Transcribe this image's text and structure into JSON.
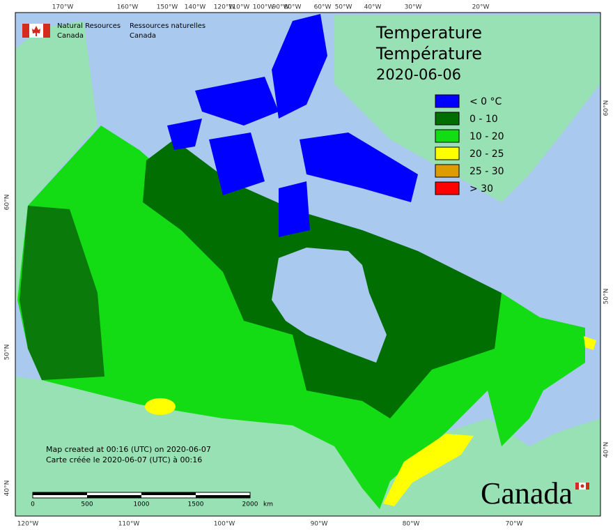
{
  "header": {
    "org_en": [
      "Natural Resources",
      "Canada"
    ],
    "org_fr": [
      "Ressources naturelles",
      "Canada"
    ]
  },
  "title": [
    "Temperature",
    "Température",
    "2020-06-06"
  ],
  "legend": [
    {
      "label": "< 0 °C",
      "color": "#0000ff"
    },
    {
      "label": "0 - 10",
      "color": "#006e00"
    },
    {
      "label": "10 - 20",
      "color": "#14dc14"
    },
    {
      "label": "20 - 25",
      "color": "#ffff00"
    },
    {
      "label": "25 - 30",
      "color": "#dd9c00"
    },
    {
      "label": "> 30",
      "color": "#ff0000"
    }
  ],
  "graticule": {
    "top": [
      "170°W",
      "160°W",
      "150°W",
      "140°W",
      "120°W",
      "110°W",
      "100°W",
      "90°W",
      "80°W",
      "60°W",
      "50°W",
      "40°W",
      "30°W",
      "20°W"
    ],
    "bottom": [
      "120°W",
      "110°W",
      "100°W",
      "90°W",
      "80°W",
      "70°W"
    ],
    "left": [
      "60°N",
      "50°N",
      "40°N"
    ],
    "right": [
      "60°N",
      "50°N",
      "40°N"
    ]
  },
  "notes": [
    "Map created at 00:16 (UTC) on 2020-06-07",
    "Carte créée le 2020-06-07 (UTC) à 00:16"
  ],
  "scale_bar": {
    "labels": [
      "0",
      "500",
      "1000",
      "1500",
      "2000"
    ],
    "unit": "km"
  },
  "wordmark": "Canada"
}
